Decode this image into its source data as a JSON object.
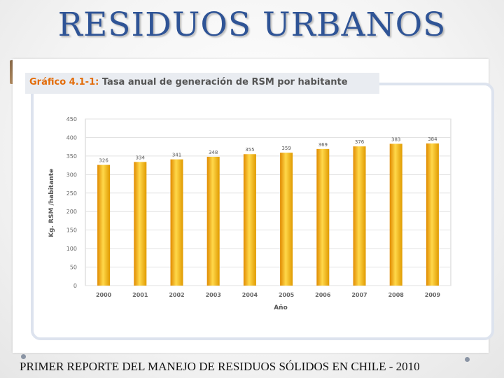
{
  "slide": {
    "title": "RESIDUOS URBANOS",
    "footer": "PRIMER REPORTE DEL MANEJO  DE RESIDUOS SÓLIDOS EN CHILE - 2010"
  },
  "figure": {
    "label": "Gráfico 4.1-1:",
    "caption": "Tasa anual de generación de RSM por habitante"
  },
  "chart_data": {
    "type": "bar",
    "title": "Tasa anual de generación de RSM por habitante",
    "xlabel": "Año",
    "ylabel": "Kg. RSM /habitante",
    "categories": [
      "2000",
      "2001",
      "2002",
      "2003",
      "2004",
      "2005",
      "2006",
      "2007",
      "2008",
      "2009"
    ],
    "values": [
      326,
      334,
      341,
      348,
      355,
      359,
      369,
      376,
      383,
      384
    ],
    "ylim": [
      0,
      450
    ],
    "yticks": [
      0,
      50,
      100,
      150,
      200,
      250,
      300,
      350,
      400,
      450
    ],
    "grid": true,
    "legend": "none",
    "colors": {
      "bar": "#f2b705",
      "bar_dark": "#e08a00",
      "bar_light": "#ffd84a"
    }
  }
}
